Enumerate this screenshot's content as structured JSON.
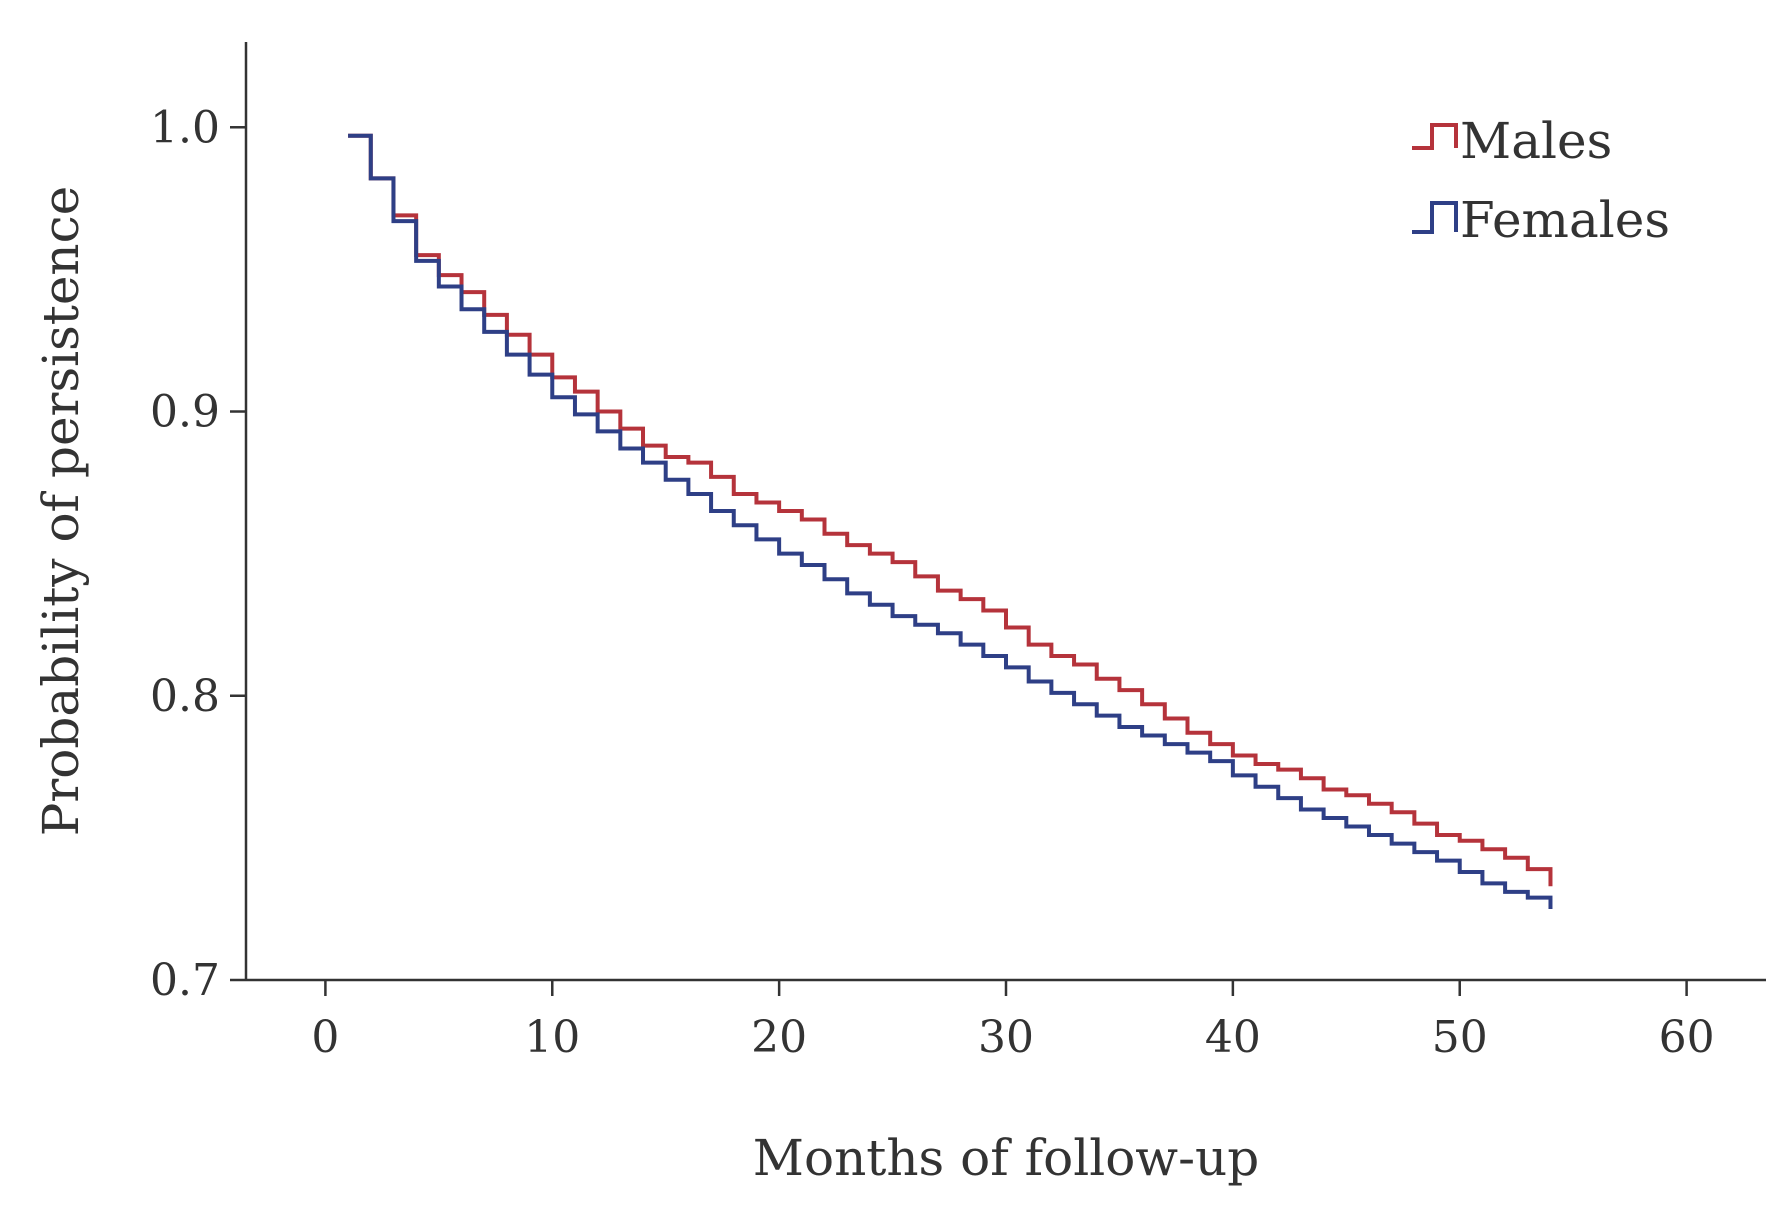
{
  "chart_data": {
    "type": "line",
    "subtype": "kaplan-meier step",
    "title": "",
    "xlabel": "Months of follow-up",
    "ylabel": "Probability of persistence",
    "xlim": [
      -3.5,
      63.5
    ],
    "ylim": [
      0.7,
      1.03
    ],
    "xticks": [
      0,
      10,
      20,
      30,
      40,
      50,
      60
    ],
    "xtick_labels": [
      "0",
      "10",
      "20",
      "30",
      "40",
      "50",
      "60"
    ],
    "yticks": [
      0.7,
      0.8,
      0.9,
      1.0
    ],
    "ytick_labels": [
      "0.7",
      "0.8",
      "0.9",
      "1.0"
    ],
    "legend_position": "top-right",
    "series": [
      {
        "name": "Males",
        "color": "#b5333b",
        "x": [
          1,
          2,
          3,
          4,
          5,
          6,
          7,
          8,
          9,
          10,
          11,
          12,
          13,
          14,
          15,
          16,
          17,
          18,
          19,
          20,
          21,
          22,
          23,
          24,
          25,
          26,
          27,
          28,
          29,
          30,
          31,
          32,
          33,
          34,
          35,
          36,
          37,
          38,
          39,
          40,
          41,
          42,
          43,
          44,
          45,
          46,
          47,
          48,
          49,
          50,
          51,
          52,
          53,
          54
        ],
        "y": [
          0.997,
          0.982,
          0.969,
          0.955,
          0.948,
          0.942,
          0.934,
          0.927,
          0.92,
          0.912,
          0.907,
          0.9,
          0.894,
          0.888,
          0.884,
          0.882,
          0.877,
          0.871,
          0.868,
          0.865,
          0.862,
          0.857,
          0.853,
          0.85,
          0.847,
          0.842,
          0.837,
          0.834,
          0.83,
          0.824,
          0.818,
          0.814,
          0.811,
          0.806,
          0.802,
          0.797,
          0.792,
          0.787,
          0.783,
          0.779,
          0.776,
          0.774,
          0.771,
          0.767,
          0.765,
          0.762,
          0.759,
          0.755,
          0.751,
          0.749,
          0.746,
          0.743,
          0.739,
          0.733
        ]
      },
      {
        "name": "Females",
        "color": "#2e3f86",
        "x": [
          1,
          2,
          3,
          4,
          5,
          6,
          7,
          8,
          9,
          10,
          11,
          12,
          13,
          14,
          15,
          16,
          17,
          18,
          19,
          20,
          21,
          22,
          23,
          24,
          25,
          26,
          27,
          28,
          29,
          30,
          31,
          32,
          33,
          34,
          35,
          36,
          37,
          38,
          39,
          40,
          41,
          42,
          43,
          44,
          45,
          46,
          47,
          48,
          49,
          50,
          51,
          52,
          53,
          54
        ],
        "y": [
          0.997,
          0.982,
          0.967,
          0.953,
          0.944,
          0.936,
          0.928,
          0.92,
          0.913,
          0.905,
          0.899,
          0.893,
          0.887,
          0.882,
          0.876,
          0.871,
          0.865,
          0.86,
          0.855,
          0.85,
          0.846,
          0.841,
          0.836,
          0.832,
          0.828,
          0.825,
          0.822,
          0.818,
          0.814,
          0.81,
          0.805,
          0.801,
          0.797,
          0.793,
          0.789,
          0.786,
          0.783,
          0.78,
          0.777,
          0.772,
          0.768,
          0.764,
          0.76,
          0.757,
          0.754,
          0.751,
          0.748,
          0.745,
          0.742,
          0.738,
          0.734,
          0.731,
          0.729,
          0.725
        ]
      }
    ]
  }
}
